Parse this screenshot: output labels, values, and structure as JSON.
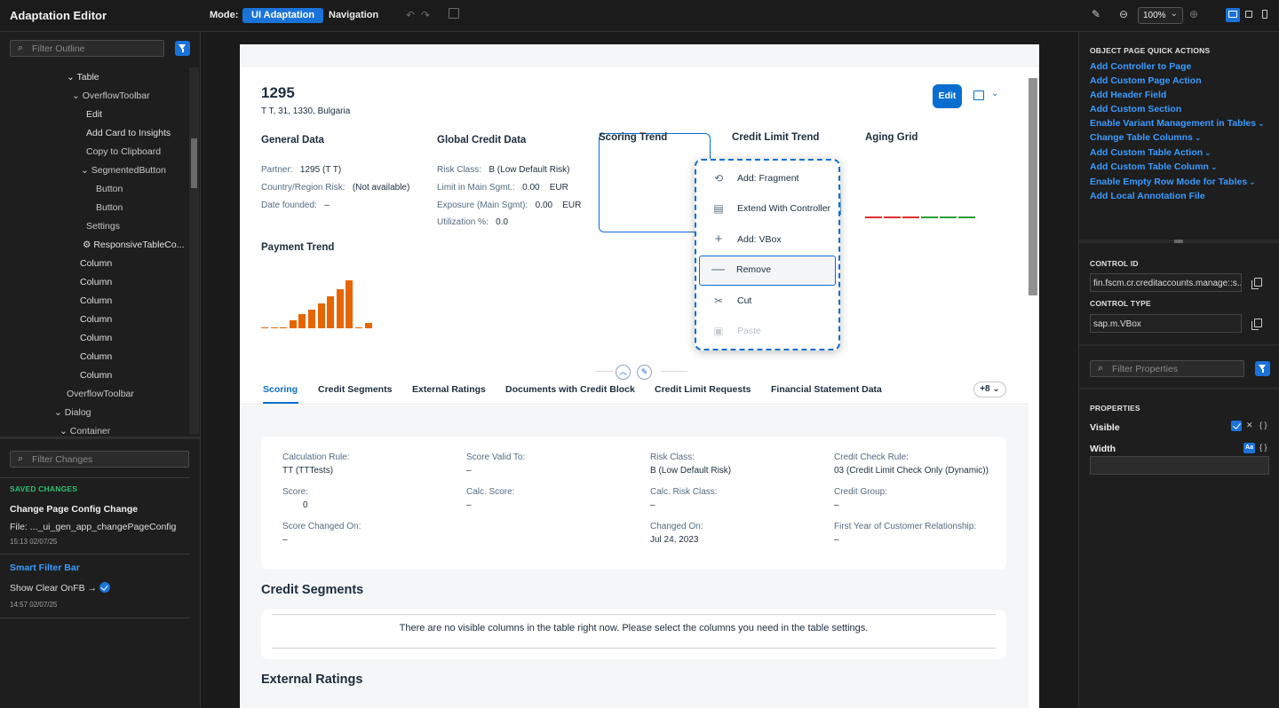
{
  "app": {
    "title": "Adaptation Editor",
    "mode_label": "Mode:",
    "mode_ui": "UI Adaptation",
    "mode_nav": "Navigation",
    "zoom": "100%"
  },
  "outline": {
    "filter_placeholder": "Filter Outline",
    "items": [
      {
        "label": "Table",
        "arrow": "⌄"
      },
      {
        "label": "OverflowToolbar",
        "arrow": "⌄"
      },
      {
        "label": "Edit"
      },
      {
        "label": "Add Card to Insights"
      },
      {
        "label": "Copy to Clipboard"
      },
      {
        "label": "SegmentedButton",
        "arrow": "⌄"
      },
      {
        "label": "Button"
      },
      {
        "label": "Button"
      },
      {
        "label": "Settings"
      },
      {
        "label": "ResponsiveTableCo..."
      },
      {
        "label": "Column"
      },
      {
        "label": "Column"
      },
      {
        "label": "Column"
      },
      {
        "label": "Column"
      },
      {
        "label": "Column"
      },
      {
        "label": "Column"
      },
      {
        "label": "Column"
      },
      {
        "label": "OverflowToolbar"
      },
      {
        "label": "Dialog",
        "arrow": "⌄"
      },
      {
        "label": "Container",
        "arrow": "⌄"
      }
    ]
  },
  "changes": {
    "filter_placeholder": "Filter Changes",
    "saved_heading": "SAVED CHANGES",
    "change1_title": "Change Page Config Change",
    "change1_file": "File:  ..._ui_gen_app_changePageConfig",
    "change1_time": "15:13 02/07/25",
    "change2_title": "Smart Filter Bar",
    "change2_text": "Show Clear OnFB →",
    "change2_time": "14:57 02/07/25"
  },
  "object_page": {
    "title": "1295",
    "subtitle": "T T, 31, 1330, Bulgaria",
    "edit_label": "Edit",
    "general": {
      "title": "General Data",
      "partner_label": "Partner:",
      "partner_value": "1295 (T T)",
      "country_label": "Country/Region Risk:",
      "country_value": "(Not available)",
      "founded_label": "Date founded:",
      "founded_value": "–"
    },
    "global_credit": {
      "title": "Global Credit Data",
      "risk_label": "Risk Class:",
      "risk_value": "B (Low Default Risk)",
      "limit_label": "Limit in Main Sgmt.:",
      "limit_value": "0.00",
      "limit_unit": "EUR",
      "exposure_label": "Exposure (Main Sgmt):",
      "exposure_value": "0.00",
      "exposure_unit": "EUR",
      "util_label": "Utilization %:",
      "util_value": "0.0"
    },
    "scoring_trend_title": "Scoring Trend",
    "credit_limit_trend_title": "Credit Limit Trend",
    "aging_grid_title": "Aging Grid",
    "payment_trend_title": "Payment Trend",
    "payment_bars": [
      0.02,
      0.02,
      0.02,
      0.16,
      0.28,
      0.38,
      0.5,
      0.64,
      0.78,
      0.96,
      0.02,
      0.1
    ],
    "aging_colors": [
      "#e03030",
      "#e03030",
      "#e03030",
      "#2a9d3a",
      "#2a9d3a",
      "#2a9d3a"
    ],
    "tabs": [
      "Scoring",
      "Credit Segments",
      "External Ratings",
      "Documents with Credit Block",
      "Credit Limit Requests",
      "Financial Statement Data"
    ],
    "more_tabs": "+8",
    "scoring": {
      "calc_rule_label": "Calculation Rule:",
      "calc_rule_value": "TT (TTTests)",
      "valid_to_label": "Score Valid To:",
      "valid_to_value": "–",
      "risk_class_label": "Risk Class:",
      "risk_class_value": "B (Low Default Risk)",
      "check_rule_label": "Credit Check Rule:",
      "check_rule_value": "03 (Credit Limit Check Only (Dynamic))",
      "score_label": "Score:",
      "score_value": "0",
      "calc_score_label": "Calc. Score:",
      "calc_score_value": "–",
      "calc_risk_label": "Calc. Risk Class:",
      "calc_risk_value": "–",
      "credit_group_label": "Credit Group:",
      "credit_group_value": "–",
      "changed_on_score_label": "Score Changed On:",
      "changed_on_score_value": "–",
      "changed_on_label": "Changed On:",
      "changed_on_value": "Jul 24, 2023",
      "first_year_label": "First Year of Customer Relationship:",
      "first_year_value": "–"
    },
    "credit_segments_title": "Credit Segments",
    "empty_table_msg": "There are no visible columns in the table right now. Please select the columns you need in the table settings.",
    "external_ratings_title": "External Ratings"
  },
  "context_menu": {
    "items": [
      {
        "label": "Add: Fragment",
        "icon": "fragment-icon"
      },
      {
        "label": "Extend With Controller",
        "icon": "controller-icon"
      },
      {
        "label": "Add: VBox",
        "icon": "plus-icon"
      },
      {
        "label": "Remove",
        "icon": "minus-icon"
      },
      {
        "label": "Cut",
        "icon": "scissors-icon"
      },
      {
        "label": "Paste",
        "icon": "paste-icon"
      }
    ]
  },
  "right_panel": {
    "quick_actions_heading": "OBJECT PAGE QUICK ACTIONS",
    "quick_actions": [
      {
        "label": "Add Controller to Page"
      },
      {
        "label": "Add Custom Page Action"
      },
      {
        "label": "Add Header Field"
      },
      {
        "label": "Add Custom Section"
      },
      {
        "label": "Enable Variant Management in Tables",
        "chevron": "⌄"
      },
      {
        "label": "Change Table Columns",
        "chevron": "⌄"
      },
      {
        "label": "Add Custom Table Action",
        "chevron": "⌄"
      },
      {
        "label": "Add Custom Table Column",
        "chevron": "⌄"
      },
      {
        "label": "Enable Empty Row Mode for Tables",
        "chevron": "⌄"
      },
      {
        "label": "Add Local Annotation File"
      }
    ],
    "control_id_label": "CONTROL ID",
    "control_id_value": "fin.fscm.cr.creditaccounts.manage::s...",
    "control_type_label": "CONTROL TYPE",
    "control_type_value": "sap.m.VBox",
    "filter_props_placeholder": "Filter Properties",
    "properties_heading": "PROPERTIES",
    "visible_label": "Visible",
    "width_label": "Width",
    "aa_badge": "Aa",
    "x_symbol": "✕",
    "braces_symbol": "{ }"
  },
  "colors": {
    "accent": "#1a73d8",
    "sap_blue": "#0a6ed1",
    "payment_orange": "#e76500",
    "saved_green": "#2fbf71"
  }
}
